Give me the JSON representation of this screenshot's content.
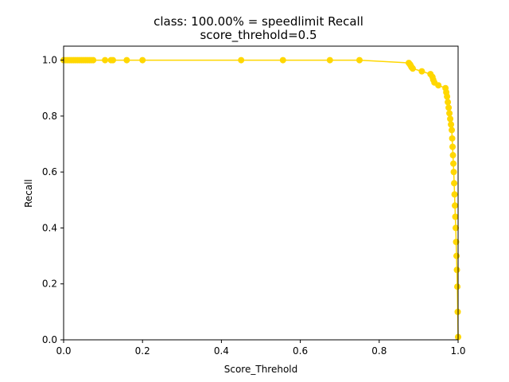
{
  "chart_data": {
    "type": "line",
    "title": "class: 100.00% = speedlimit Recall",
    "subtitle": "score_threhold=0.5",
    "xlabel": "Score_Threhold",
    "ylabel": "Recall",
    "xlim": [
      0.0,
      1.0
    ],
    "ylim": [
      0.0,
      1.05
    ],
    "xticks": [
      "0.0",
      "0.2",
      "0.4",
      "0.6",
      "0.8",
      "1.0"
    ],
    "yticks": [
      "0.0",
      "0.2",
      "0.4",
      "0.6",
      "0.8",
      "1.0"
    ],
    "grid": false,
    "color": "#ffd700",
    "series": [
      {
        "x": [
          0.0,
          0.005,
          0.01,
          0.015,
          0.02,
          0.025,
          0.03,
          0.035,
          0.04,
          0.045,
          0.05,
          0.055,
          0.06,
          0.065,
          0.07,
          0.075,
          0.105,
          0.12,
          0.125,
          0.16,
          0.2,
          0.45,
          0.556,
          0.675,
          0.75,
          0.875,
          0.878,
          0.88,
          0.882,
          0.885,
          0.908,
          0.93,
          0.935,
          0.937,
          0.94,
          0.95,
          0.968,
          0.97,
          0.972,
          0.974,
          0.976,
          0.978,
          0.98,
          0.982,
          0.984,
          0.985,
          0.986,
          0.987,
          0.988,
          0.989,
          0.99,
          0.991,
          0.992,
          0.993,
          0.994,
          0.995,
          0.996,
          0.997,
          0.998,
          0.999,
          1.0
        ],
        "y": [
          1.0,
          1.0,
          1.0,
          1.0,
          1.0,
          1.0,
          1.0,
          1.0,
          1.0,
          1.0,
          1.0,
          1.0,
          1.0,
          1.0,
          1.0,
          1.0,
          1.0,
          1.0,
          1.0,
          1.0,
          1.0,
          1.0,
          1.0,
          1.0,
          1.0,
          0.99,
          0.985,
          0.98,
          0.975,
          0.97,
          0.96,
          0.95,
          0.94,
          0.93,
          0.92,
          0.91,
          0.9,
          0.885,
          0.87,
          0.85,
          0.83,
          0.81,
          0.79,
          0.77,
          0.75,
          0.72,
          0.69,
          0.66,
          0.63,
          0.6,
          0.56,
          0.52,
          0.48,
          0.44,
          0.4,
          0.35,
          0.3,
          0.25,
          0.19,
          0.1,
          0.01
        ]
      }
    ]
  }
}
